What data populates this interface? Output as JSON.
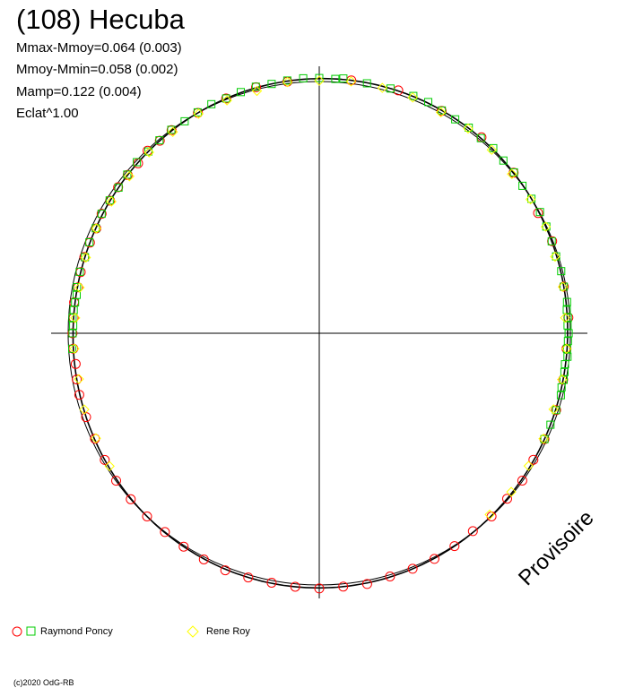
{
  "title": "(108) Hecuba",
  "stats": [
    "Mmax-Mmoy=0.064 (0.003)",
    "Mmoy-Mmin=0.058 (0.002)",
    "Mamp=0.122 (0.004)",
    "Eclat^1.00"
  ],
  "watermark": "Provisoire",
  "copyright": "(c)2020 OdG-RB",
  "legend": [
    {
      "label": "Raymond Poncy",
      "markers": [
        "circle",
        "square"
      ],
      "colors": [
        "#ff0000",
        "#00cc00"
      ]
    },
    {
      "label": "Rene Roy",
      "markers": [
        "diamond"
      ],
      "colors": [
        "#ffff00"
      ]
    }
  ],
  "chart_data": {
    "type": "scatter",
    "projection": "polar",
    "description_axes": "rotation phase 0-1 mapped around circle; radius encodes magnitude",
    "amplitude_mag": 0.122,
    "mmax_minus_mmoy": 0.064,
    "mmoy_minus_mmin": 0.058,
    "reference_circle": true,
    "fit_curve": true,
    "axes_cross": true,
    "colors": {
      "red": "#ff0000",
      "green": "#00cc00",
      "yellow": "#ffff00",
      "fit": "#000000"
    },
    "series": [
      {
        "name": "Raymond Poncy",
        "marker": "circle",
        "color": "#ff0000",
        "phase": [
          0.02,
          0.05,
          0.08,
          0.11,
          0.14,
          0.17,
          0.19,
          0.22,
          0.24,
          0.26,
          0.28,
          0.3,
          0.32,
          0.335,
          0.35,
          0.365,
          0.38,
          0.395,
          0.41,
          0.425,
          0.44,
          0.455,
          0.47,
          0.485,
          0.5,
          0.515,
          0.53,
          0.545,
          0.56,
          0.575,
          0.59,
          0.605,
          0.62,
          0.635,
          0.65,
          0.665,
          0.68,
          0.695,
          0.71,
          0.72,
          0.73,
          0.74,
          0.75,
          0.76,
          0.77,
          0.78,
          0.79,
          0.8,
          0.81,
          0.82,
          0.83,
          0.84,
          0.85,
          0.86,
          0.87,
          0.88,
          0.89,
          0.9,
          0.92,
          0.94,
          0.96,
          0.98
        ],
        "dmag": [
          0.0,
          0.005,
          -0.005,
          0.01,
          0.0,
          -0.01,
          0.005,
          0.0,
          0.01,
          -0.005,
          0.0,
          0.005,
          0.0,
          -0.005,
          0.01,
          0.0,
          0.005,
          -0.01,
          0.0,
          0.005,
          0.0,
          -0.005,
          0.01,
          0.0,
          0.005,
          0.0,
          -0.005,
          0.0,
          0.01,
          0.005,
          0.0,
          -0.005,
          0.0,
          0.005,
          0.01,
          0.0,
          -0.005,
          0.0,
          0.005,
          0.0,
          -0.01,
          0.0,
          0.005,
          0.0,
          0.01,
          -0.005,
          0.0,
          0.005,
          0.0,
          -0.005,
          0.01,
          0.0,
          0.005,
          0.0,
          -0.005,
          0.01,
          0.0,
          0.005,
          0.0,
          0.0,
          0.005,
          -0.005
        ]
      },
      {
        "name": "Raymond Poncy",
        "marker": "square",
        "color": "#00cc00",
        "phase": [
          0.0,
          0.01,
          0.015,
          0.03,
          0.045,
          0.06,
          0.07,
          0.08,
          0.09,
          0.1,
          0.11,
          0.12,
          0.13,
          0.14,
          0.15,
          0.16,
          0.17,
          0.18,
          0.19,
          0.2,
          0.21,
          0.22,
          0.23,
          0.235,
          0.24,
          0.245,
          0.25,
          0.255,
          0.26,
          0.265,
          0.27,
          0.275,
          0.28,
          0.285,
          0.29,
          0.3,
          0.31,
          0.32,
          0.74,
          0.75,
          0.755,
          0.76,
          0.765,
          0.77,
          0.775,
          0.78,
          0.79,
          0.8,
          0.81,
          0.82,
          0.83,
          0.84,
          0.85,
          0.86,
          0.87,
          0.88,
          0.89,
          0.9,
          0.91,
          0.92,
          0.93,
          0.94,
          0.95,
          0.96,
          0.97,
          0.98,
          0.99
        ],
        "dmag": [
          0.005,
          0.0,
          0.01,
          -0.005,
          0.0,
          0.005,
          0.01,
          0.0,
          -0.005,
          0.005,
          0.0,
          0.01,
          0.0,
          0.005,
          -0.005,
          0.0,
          0.01,
          0.005,
          0.0,
          -0.005,
          0.005,
          0.0,
          0.01,
          0.0,
          0.005,
          0.0,
          0.01,
          0.005,
          0.0,
          0.01,
          -0.005,
          0.0,
          0.005,
          0.0,
          0.01,
          0.005,
          0.0,
          0.0,
          0.01,
          0.005,
          0.0,
          0.01,
          0.005,
          0.0,
          -0.005,
          0.005,
          0.01,
          0.0,
          0.005,
          0.0,
          0.01,
          0.005,
          0.0,
          0.005,
          0.01,
          0.0,
          0.005,
          0.01,
          0.0,
          0.005,
          0.01,
          0.0,
          0.005,
          0.01,
          0.0,
          0.005,
          0.01
        ]
      },
      {
        "name": "Rene Roy",
        "marker": "diamond",
        "color": "#ffff00",
        "phase": [
          0.0,
          0.02,
          0.04,
          0.06,
          0.08,
          0.1,
          0.12,
          0.14,
          0.16,
          0.18,
          0.2,
          0.22,
          0.24,
          0.26,
          0.28,
          0.3,
          0.32,
          0.34,
          0.36,
          0.38,
          0.66,
          0.68,
          0.7,
          0.72,
          0.74,
          0.76,
          0.78,
          0.8,
          0.82,
          0.84,
          0.86,
          0.88,
          0.9,
          0.92,
          0.94,
          0.96,
          0.98
        ],
        "dmag": [
          -0.02,
          -0.01,
          -0.015,
          -0.01,
          -0.02,
          -0.005,
          -0.01,
          -0.02,
          -0.01,
          0.0,
          -0.015,
          -0.01,
          -0.02,
          -0.005,
          -0.01,
          -0.02,
          -0.01,
          -0.015,
          -0.01,
          -0.02,
          -0.01,
          -0.015,
          -0.005,
          -0.02,
          -0.01,
          -0.015,
          -0.02,
          -0.01,
          -0.005,
          -0.015,
          -0.02,
          -0.01,
          -0.015,
          -0.01,
          -0.02,
          -0.03,
          -0.01
        ]
      }
    ]
  }
}
